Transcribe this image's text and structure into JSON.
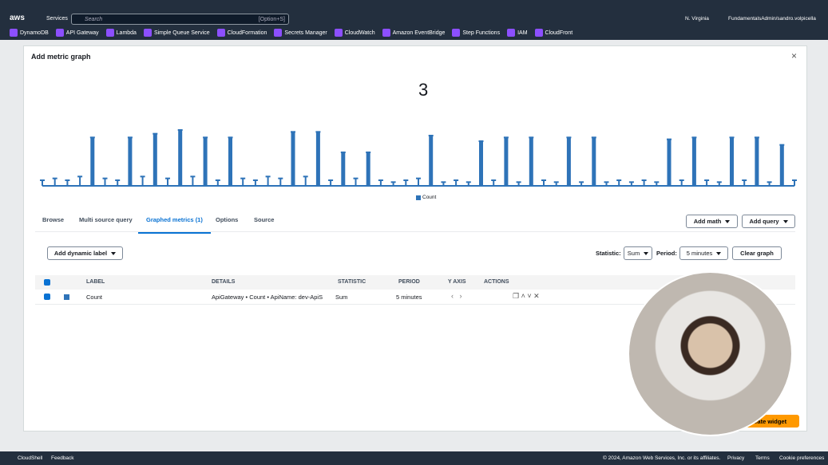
{
  "topbar": {
    "logo": "aws",
    "services": "Services",
    "search_placeholder": "Search",
    "search_shortcut": "[Option+S]",
    "region": "N. Virginia",
    "account": "FundamentalsAdmin/sandro.volpicella"
  },
  "favorites": [
    "DynamoDB",
    "API Gateway",
    "Lambda",
    "Simple Queue Service",
    "CloudFormation",
    "Secrets Manager",
    "CloudWatch",
    "Amazon EventBridge",
    "Step Functions",
    "IAM",
    "CloudFront"
  ],
  "modal": {
    "title": "Add metric graph",
    "graph": {
      "number": "3",
      "legend": "Count",
      "color": "#2e73b8",
      "ylim": [
        0,
        3
      ],
      "values": [
        0.3,
        0.4,
        0.3,
        0.5,
        2.6,
        0.4,
        0.3,
        2.6,
        0.5,
        2.8,
        0.4,
        3,
        0.5,
        2.6,
        0.3,
        2.6,
        0.4,
        0.3,
        0.5,
        0.4,
        2.9,
        0.5,
        2.9,
        0.3,
        1.8,
        0.4,
        1.8,
        0.3,
        0.2,
        0.3,
        0.4,
        2.7,
        0.2,
        0.3,
        0.2,
        2.4,
        0.3,
        2.6,
        0.2,
        2.6,
        0.3,
        0.2,
        2.6,
        0.2,
        2.6,
        0.2,
        0.3,
        0.2,
        0.3,
        0.2,
        2.5,
        0.3,
        2.6,
        0.3,
        0.2,
        2.6,
        0.3,
        2.6,
        0.2,
        2.2,
        0.3
      ]
    },
    "tabs": [
      "Browse",
      "Multi source query",
      "Graphed metrics (1)",
      "Options",
      "Source"
    ],
    "active_tab": 2,
    "buttons": {
      "add_math": "Add math",
      "add_query": "Add query",
      "add_dynamic_label": "Add dynamic label",
      "clear_graph": "Clear graph",
      "create_widget": "Create widget"
    },
    "statistic_label": "Statistic:",
    "statistic_value": "Sum",
    "period_label": "Period:",
    "period_value": "5 minutes",
    "table": {
      "headers": [
        "LABEL",
        "DETAILS",
        "STATISTIC",
        "PERIOD",
        "Y AXIS",
        "ACTIONS"
      ],
      "rows": [
        [
          "Count",
          "ApiGateway • Count • ApiName: dev-ApiS",
          "Sum",
          "5 minutes"
        ]
      ]
    }
  },
  "footer": {
    "left": [
      "CloudShell",
      "Feedback"
    ],
    "copyright": "© 2024, Amazon Web Services, Inc. or its affiliates.",
    "right": [
      "Privacy",
      "Terms",
      "Cookie preferences"
    ]
  }
}
